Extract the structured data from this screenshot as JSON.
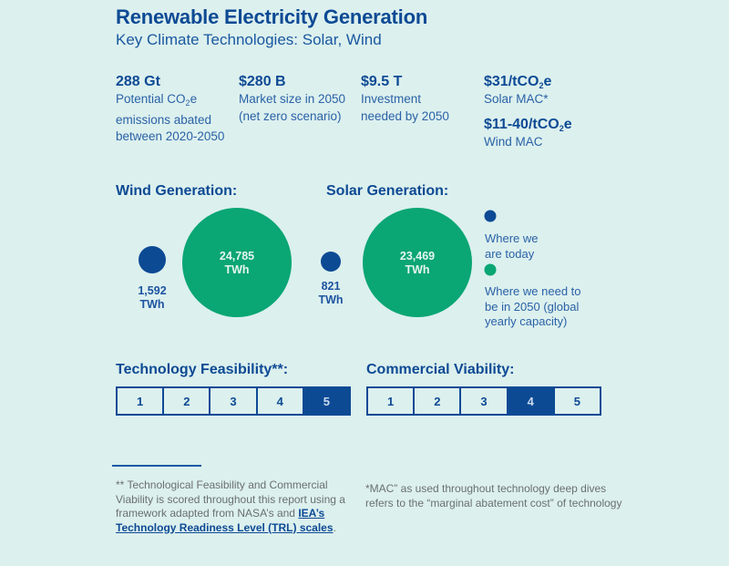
{
  "header": {
    "title": "Renewable Electricity Generation",
    "subtitle": "Key Climate Technologies: Solar, Wind"
  },
  "stats": [
    {
      "value": "288 Gt",
      "label_pre": "Potential CO",
      "label_sub": "2",
      "label_post": "e emissions abated between 2020-2050"
    },
    {
      "value": "$280 B",
      "label": "Market size in 2050 (net zero scenario)"
    },
    {
      "value": "$9.5 T",
      "label": "Investment needed by 2050"
    }
  ],
  "mac": [
    {
      "value_pre": "$31/tCO",
      "value_sub": "2",
      "value_post": "e",
      "label": "Solar MAC*"
    },
    {
      "value_pre": "$11-40/tCO",
      "value_sub": "2",
      "value_post": "e",
      "label": "Wind MAC"
    }
  ],
  "generation": {
    "wind": {
      "heading": "Wind Generation:",
      "today_value": "1,592",
      "target_value": "24,785",
      "unit": "TWh"
    },
    "solar": {
      "heading": "Solar Generation:",
      "today_value": "821",
      "target_value": "23,469",
      "unit": "TWh"
    }
  },
  "legend": {
    "today": "Where we are today",
    "target": "Where we need to be in 2050 (global yearly capacity)"
  },
  "colors": {
    "today": "#0d4a94",
    "target": "#0aa673",
    "background": "#dcf0ee"
  },
  "feasibility": {
    "heading": "Technology Feasibility**:",
    "levels": [
      "1",
      "2",
      "3",
      "4",
      "5"
    ],
    "selected": 5
  },
  "viability": {
    "heading": "Commercial Viability:",
    "levels": [
      "1",
      "2",
      "3",
      "4",
      "5"
    ],
    "selected": 4
  },
  "footnotes": {
    "trl_text": "** Technological Feasibility and Commercial Viability is scored throughout this report using a framework adapted from NASA’s and ",
    "trl_link": "IEA’s Technology Readiness Level (TRL) scales",
    "trl_end": ".",
    "mac_text": "*MAC” as used throughout technology deep dives refers to the “marginal abatement cost” of technology"
  }
}
